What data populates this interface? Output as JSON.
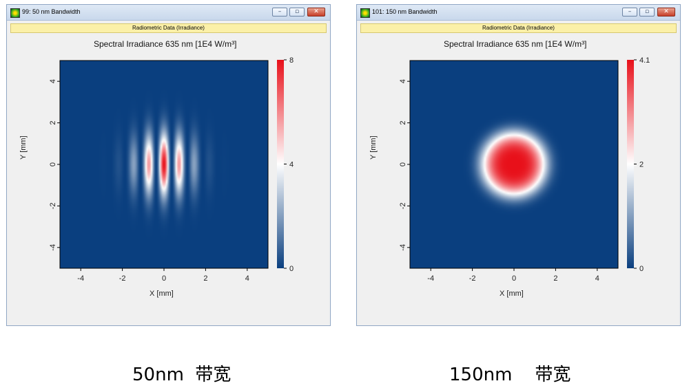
{
  "windows": [
    {
      "title": "99: 50 nm Bandwidth",
      "info_bar": "Radiometric Data (Irradiance)",
      "caption": "50nm  带宽"
    },
    {
      "title": "101: 150 nm Bandwidth",
      "info_bar": "Radiometric Data (Irradiance)",
      "caption": "150nm    带宽"
    }
  ],
  "window_buttons": {
    "minimize": "–",
    "restore": "▫",
    "close": "✕"
  },
  "chart_data": [
    {
      "type": "heatmap",
      "title": "Spectral Irradiance 635 nm  [1E4 W/m³]",
      "xlabel": "X [mm]",
      "ylabel": "Y [mm]",
      "xlim": [
        -5,
        5
      ],
      "ylim": [
        -5,
        5
      ],
      "xticks": [
        -4,
        -2,
        0,
        2,
        4
      ],
      "yticks": [
        -4,
        -2,
        0,
        2,
        4
      ],
      "colorbar": {
        "min": 0,
        "max": 8,
        "ticks": [
          "0",
          "4",
          "8"
        ]
      },
      "colormap": {
        "low": "#0a3f7f",
        "mid": "#ffffff",
        "high": "#e8101a"
      },
      "pattern": {
        "kind": "fringes",
        "peak": 8,
        "fringe_period_mm": 0.75,
        "envelope_sigma_x_mm": 0.9,
        "envelope_sigma_y_mm": 1.0
      }
    },
    {
      "type": "heatmap",
      "title": "Spectral Irradiance 635 nm  [1E4 W/m³]",
      "xlabel": "X [mm]",
      "ylabel": "Y [mm]",
      "xlim": [
        -5,
        5
      ],
      "ylim": [
        -5,
        5
      ],
      "xticks": [
        -4,
        -2,
        0,
        2,
        4
      ],
      "yticks": [
        -4,
        -2,
        0,
        2,
        4
      ],
      "colorbar": {
        "min": 0,
        "max": 4.1,
        "ticks": [
          "0",
          "2",
          "4.1"
        ]
      },
      "colormap": {
        "low": "#0a3f7f",
        "mid": "#ffffff",
        "high": "#e8101a"
      },
      "pattern": {
        "kind": "gaussian",
        "peak": 4.1,
        "sigma_mm": 1.55,
        "order": 2
      }
    }
  ]
}
